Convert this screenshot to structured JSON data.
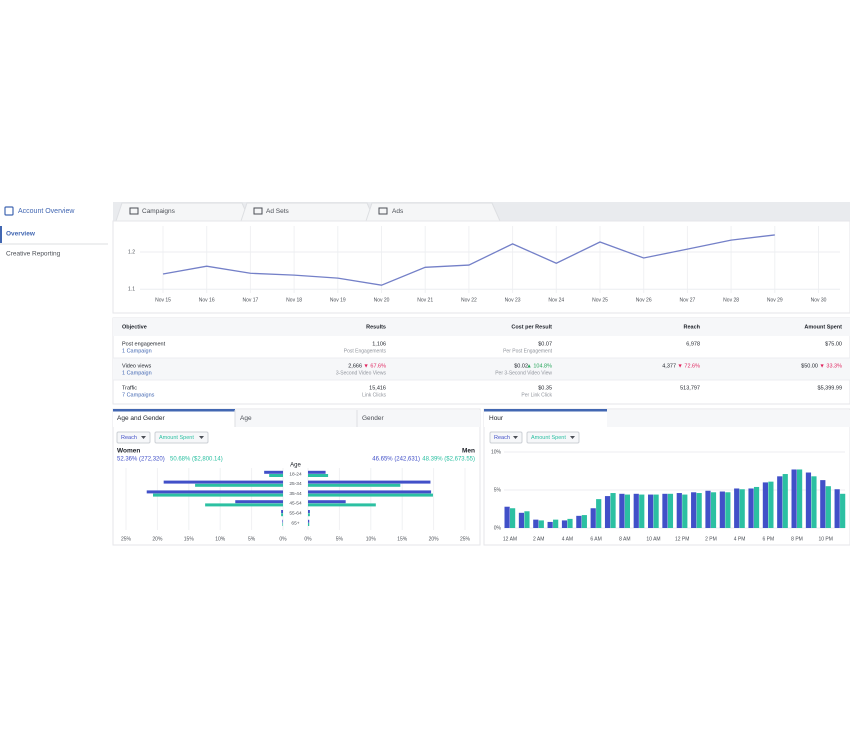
{
  "sidebar": {
    "title": "Account Overview",
    "items": [
      "Overview",
      "Creative Reporting"
    ]
  },
  "tabs": [
    "Campaigns",
    "Ad Sets",
    "Ads"
  ],
  "line_chart": {
    "type": "line",
    "categories": [
      "Nov 15",
      "Nov 16",
      "Nov 17",
      "Nov 18",
      "Nov 19",
      "Nov 20",
      "Nov 21",
      "Nov 22",
      "Nov 23",
      "Nov 24",
      "Nov 25",
      "Nov 26",
      "Nov 27",
      "Nov 28",
      "Nov 29",
      "Nov 30"
    ],
    "values": [
      1.141,
      1.162,
      1.143,
      1.138,
      1.13,
      1.111,
      1.159,
      1.165,
      1.222,
      1.17,
      1.227,
      1.184,
      1.208,
      1.232,
      1.246,
      null
    ],
    "color": "#7480c8",
    "ylim": [
      1.09,
      1.27
    ],
    "yticks": [
      1.1,
      1.2
    ],
    "grid": true
  },
  "table": {
    "columns": [
      "Objective",
      "Results",
      "Cost per Result",
      "Reach",
      "Amount Spent"
    ],
    "rows": [
      {
        "objective": "Post engagement",
        "campaigns": "1 Campaign",
        "results": "1,106",
        "result_type": "Post Engagements",
        "cost": "$0.07",
        "cost_type": "Per Post Engagement",
        "reach": "6,978",
        "spent": "$75.00"
      },
      {
        "objective": "Video views",
        "campaigns": "1 Campaign",
        "results": "2,666",
        "results_change": "▼ 67.6%",
        "result_type": "3-Second Video Views",
        "cost": "$0.02",
        "cost_change": "▲ 104.8%",
        "cost_type": "Per 3-Second Video View",
        "reach": "4,377",
        "reach_change": "▼ 72.6%",
        "spent": "$50.00",
        "spent_change": "▼ 33.3%"
      },
      {
        "objective": "Traffic",
        "campaigns": "7 Campaigns",
        "results": "15,416",
        "result_type": "Link Clicks",
        "cost": "$0.35",
        "cost_type": "Per Link Click",
        "reach": "513,797",
        "spent": "$5,399.99"
      }
    ]
  },
  "age_gender": {
    "type": "bar",
    "tabs": [
      "Age and Gender",
      "Age",
      "Gender"
    ],
    "axis_title": "Age",
    "women": {
      "label": "Women",
      "reach_summary": "52.36% (272,320)",
      "spend_summary": "50.68% ($2,800.14)"
    },
    "men": {
      "label": "Men",
      "reach_summary": "46.65% (242,631)",
      "spend_summary": "48.39% ($2,673.55)"
    },
    "categories": [
      "18-24",
      "25-34",
      "35-44",
      "45-54",
      "55-64",
      "65+"
    ],
    "series": [
      {
        "name": "Reach",
        "color": "#4150c8",
        "women": [
          3.0,
          19.0,
          21.7,
          7.6,
          0.3,
          0.1
        ],
        "men": [
          2.8,
          19.5,
          19.6,
          6.0,
          0.3,
          0.2
        ]
      },
      {
        "name": "Amount Spent",
        "color": "#2cc0a2",
        "women": [
          2.2,
          14.0,
          20.7,
          12.4,
          0.3,
          0.1
        ],
        "men": [
          3.2,
          14.7,
          19.9,
          10.8,
          0.3,
          0.2
        ]
      }
    ],
    "xlim": [
      0,
      25
    ],
    "xticks_women": [
      {
        "value": 25,
        "label": "25%"
      },
      {
        "value": 20,
        "label": "20%"
      },
      {
        "value": 15,
        "label": "15%"
      },
      {
        "value": 10,
        "label": "10%"
      },
      {
        "value": 5,
        "label": "5%"
      },
      {
        "value": 0,
        "label": "0%"
      }
    ],
    "xticks_men": [
      {
        "value": 0,
        "label": "0%"
      },
      {
        "value": 5,
        "label": "5%"
      },
      {
        "value": 10,
        "label": "10%"
      },
      {
        "value": 15,
        "label": "15%"
      },
      {
        "value": 20,
        "label": "20%"
      },
      {
        "value": 25,
        "label": "25%"
      }
    ]
  },
  "hour": {
    "type": "bar",
    "tab": "Hour",
    "categories": [
      "12 AM",
      null,
      "2 AM",
      null,
      "4 AM",
      null,
      "6 AM",
      null,
      "8 AM",
      null,
      "10 AM",
      null,
      "12 PM",
      null,
      "2 PM",
      null,
      "4 PM",
      null,
      "6 PM",
      null,
      "8 PM",
      null,
      "10 PM",
      null
    ],
    "series": [
      {
        "name": "Reach",
        "color": "#4150c8",
        "values": [
          2.8,
          2.0,
          1.1,
          0.8,
          1.0,
          1.6,
          2.6,
          4.2,
          4.5,
          4.5,
          4.4,
          4.5,
          4.6,
          4.7,
          4.9,
          4.8,
          5.2,
          5.2,
          6.0,
          6.8,
          7.7,
          7.3,
          6.3,
          5.1
        ]
      },
      {
        "name": "Amount Spent",
        "color": "#2cc0a2",
        "values": [
          2.6,
          2.2,
          1.0,
          1.1,
          1.2,
          1.7,
          3.8,
          4.6,
          4.4,
          4.4,
          4.4,
          4.5,
          4.4,
          4.6,
          4.7,
          4.7,
          5.1,
          5.4,
          6.1,
          7.1,
          7.7,
          6.8,
          5.5,
          4.5
        ]
      }
    ],
    "ylim": [
      0,
      10
    ],
    "yticks": [
      {
        "value": 0,
        "label": "0%"
      },
      {
        "value": 5,
        "label": "5%"
      },
      {
        "value": 10,
        "label": "10%"
      }
    ]
  }
}
